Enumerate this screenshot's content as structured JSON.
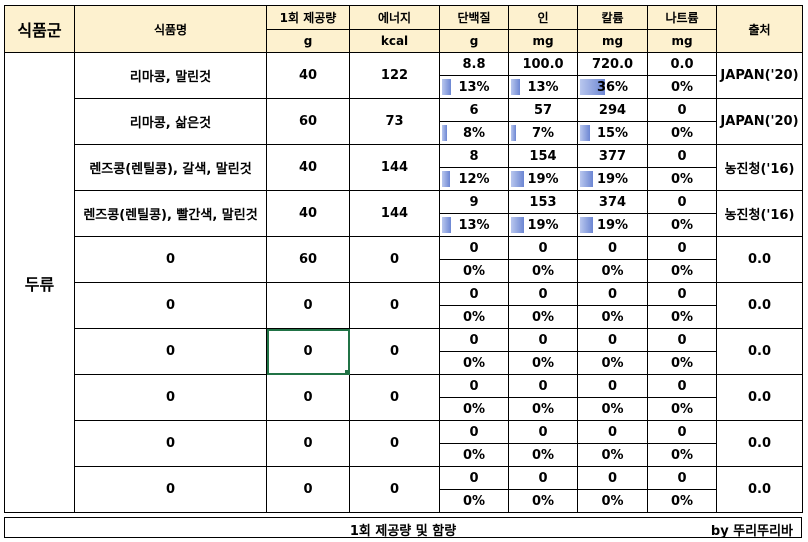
{
  "headers": {
    "group": "식품군",
    "name": "식품명",
    "serving": "1회 제공량",
    "serving_unit": "g",
    "energy": "에너지",
    "energy_unit": "kcal",
    "protein": "단백질",
    "protein_unit": "g",
    "phos": "인",
    "phos_unit": "mg",
    "potassium": "칼륨",
    "potassium_unit": "mg",
    "sodium": "나트륨",
    "sodium_unit": "mg",
    "source": "출처"
  },
  "group_label": "두류",
  "rows": [
    {
      "name": "리마콩, 말린것",
      "serving": "40",
      "energy": "122",
      "protein": "8.8",
      "phos": "100.0",
      "potassium": "720.0",
      "sodium": "0.0",
      "protein_pct": "13%",
      "phos_pct": "13%",
      "potassium_pct": "36%",
      "sodium_pct": "0%",
      "protein_level": 0.13,
      "phos_level": 0.13,
      "potassium_level": 0.36,
      "sodium_level": 0,
      "source": "JAPAN('20)"
    },
    {
      "name": "리마콩, 삶은것",
      "serving": "60",
      "energy": "73",
      "protein": "6",
      "phos": "57",
      "potassium": "294",
      "sodium": "0",
      "protein_pct": "8%",
      "phos_pct": "7%",
      "potassium_pct": "15%",
      "sodium_pct": "0%",
      "protein_level": 0.08,
      "phos_level": 0.07,
      "potassium_level": 0.15,
      "sodium_level": 0,
      "source": "JAPAN('20)"
    },
    {
      "name": "렌즈콩(렌틸콩), 갈색, 말린것",
      "serving": "40",
      "energy": "144",
      "protein": "8",
      "phos": "154",
      "potassium": "377",
      "sodium": "0",
      "protein_pct": "12%",
      "phos_pct": "19%",
      "potassium_pct": "19%",
      "sodium_pct": "0%",
      "protein_level": 0.12,
      "phos_level": 0.19,
      "potassium_level": 0.19,
      "sodium_level": 0,
      "source": "농진청('16)"
    },
    {
      "name": "렌즈콩(렌틸콩), 빨간색, 말린것",
      "serving": "40",
      "energy": "144",
      "protein": "9",
      "phos": "153",
      "potassium": "374",
      "sodium": "0",
      "protein_pct": "13%",
      "phos_pct": "19%",
      "potassium_pct": "19%",
      "sodium_pct": "0%",
      "protein_level": 0.13,
      "phos_level": 0.19,
      "potassium_level": 0.19,
      "sodium_level": 0,
      "source": "농진청('16)"
    },
    {
      "name": "0",
      "serving": "60",
      "energy": "0",
      "protein": "0",
      "phos": "0",
      "potassium": "0",
      "sodium": "0",
      "protein_pct": "0%",
      "phos_pct": "0%",
      "potassium_pct": "0%",
      "sodium_pct": "0%",
      "protein_level": 0,
      "phos_level": 0,
      "potassium_level": 0,
      "sodium_level": 0,
      "source": "0.0"
    },
    {
      "name": "0",
      "serving": "0",
      "energy": "0",
      "protein": "0",
      "phos": "0",
      "potassium": "0",
      "sodium": "0",
      "protein_pct": "0%",
      "phos_pct": "0%",
      "potassium_pct": "0%",
      "sodium_pct": "0%",
      "protein_level": 0,
      "phos_level": 0,
      "potassium_level": 0,
      "sodium_level": 0,
      "source": "0.0"
    },
    {
      "name": "0",
      "serving": "0",
      "energy": "0",
      "protein": "0",
      "phos": "0",
      "potassium": "0",
      "sodium": "0",
      "protein_pct": "0%",
      "phos_pct": "0%",
      "potassium_pct": "0%",
      "sodium_pct": "0%",
      "protein_level": 0,
      "phos_level": 0,
      "potassium_level": 0,
      "sodium_level": 0,
      "source": "0.0"
    },
    {
      "name": "0",
      "serving": "0",
      "energy": "0",
      "protein": "0",
      "phos": "0",
      "potassium": "0",
      "sodium": "0",
      "protein_pct": "0%",
      "phos_pct": "0%",
      "potassium_pct": "0%",
      "sodium_pct": "0%",
      "protein_level": 0,
      "phos_level": 0,
      "potassium_level": 0,
      "sodium_level": 0,
      "source": "0.0"
    },
    {
      "name": "0",
      "serving": "0",
      "energy": "0",
      "protein": "0",
      "phos": "0",
      "potassium": "0",
      "sodium": "0",
      "protein_pct": "0%",
      "phos_pct": "0%",
      "potassium_pct": "0%",
      "sodium_pct": "0%",
      "protein_level": 0,
      "phos_level": 0,
      "potassium_level": 0,
      "sodium_level": 0,
      "source": "0.0"
    },
    {
      "name": "0",
      "serving": "0",
      "energy": "0",
      "protein": "0",
      "phos": "0",
      "potassium": "0",
      "sodium": "0",
      "protein_pct": "0%",
      "phos_pct": "0%",
      "potassium_pct": "0%",
      "sodium_pct": "0%",
      "protein_level": 0,
      "phos_level": 0,
      "potassium_level": 0,
      "sodium_level": 0,
      "source": "0.0"
    }
  ],
  "footer": {
    "caption": "1회 제공량 및 함량",
    "credit": "by 뚜리뚜리바"
  },
  "colors": {
    "header_fill": "#fdf1cf",
    "bar_light": "#b9c7ee",
    "bar_dark": "#6c86d3",
    "selection": "#217346"
  }
}
